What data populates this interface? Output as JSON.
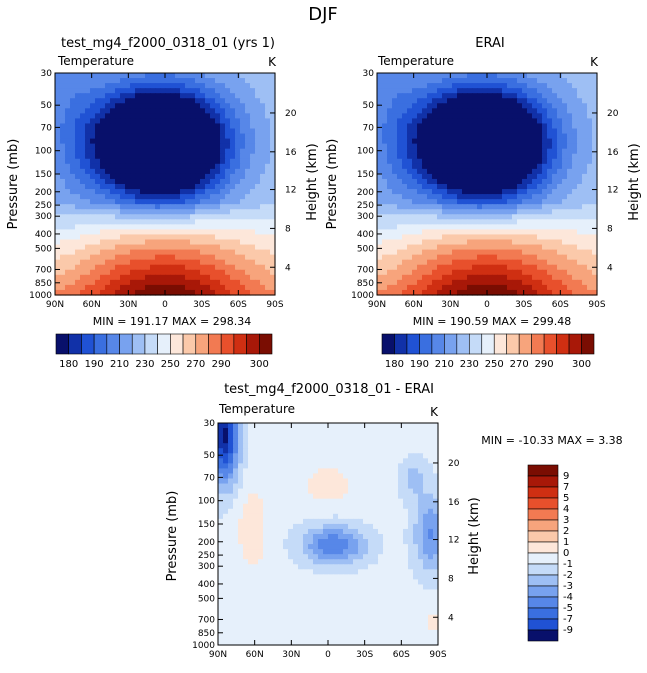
{
  "figure_title": "DJF",
  "colors": {
    "scale": [
      "#08106b",
      "#1131a8",
      "#2052d4",
      "#3a6fe0",
      "#5787e8",
      "#78a2ef",
      "#9ebff4",
      "#c5dbf8",
      "#e6f0fb",
      "#fde7da",
      "#fbc9aa",
      "#f7a47c",
      "#f27a52",
      "#e8502c",
      "#cf2f12",
      "#a81808",
      "#7a0d02"
    ],
    "diff_scale": [
      "#08106b",
      "#1131a8",
      "#2052d4",
      "#3a6fe0",
      "#5787e8",
      "#78a2ef",
      "#9ebff4",
      "#c5dbf8",
      "#e6f0fb",
      "#fde7da",
      "#fbc9aa",
      "#f7a47c",
      "#f27a52",
      "#e8502c",
      "#cf2f12",
      "#a81808",
      "#7a0d02"
    ]
  },
  "chart_data": [
    {
      "type": "heatmap",
      "title": "test_mg4_f2000_0318_01 (yrs 1)",
      "left_label": "Temperature",
      "right_label": "K",
      "xlabel": "",
      "ylabel": "Pressure (mb)",
      "ylabel_right": "Height (km)",
      "x_ticks": [
        "90N",
        "60N",
        "30N",
        "0",
        "30S",
        "60S",
        "90S"
      ],
      "y_ticks": [
        "30",
        "50",
        "70",
        "100",
        "150",
        "200",
        "250",
        "300",
        "400",
        "500",
        "700",
        "850",
        "1000"
      ],
      "right_ticks": [
        "20",
        "16",
        "12",
        "8",
        "4"
      ],
      "stats": "MIN = 191.17   MAX = 298.34",
      "colorbar_labels": [
        "180",
        "190",
        "210",
        "230",
        "250",
        "270",
        "290",
        "300"
      ]
    },
    {
      "type": "heatmap",
      "title": "ERAI",
      "left_label": "Temperature",
      "right_label": "K",
      "xlabel": "",
      "ylabel": "Pressure (mb)",
      "ylabel_right": "Height (km)",
      "x_ticks": [
        "90N",
        "60N",
        "30N",
        "0",
        "30S",
        "60S",
        "90S"
      ],
      "y_ticks": [
        "30",
        "50",
        "70",
        "100",
        "150",
        "200",
        "250",
        "300",
        "400",
        "500",
        "700",
        "850",
        "1000"
      ],
      "right_ticks": [
        "20",
        "16",
        "12",
        "8",
        "4"
      ],
      "stats": "MIN = 190.59   MAX = 299.48",
      "colorbar_labels": [
        "180",
        "190",
        "210",
        "230",
        "250",
        "270",
        "290",
        "300"
      ]
    },
    {
      "type": "heatmap",
      "title": "test_mg4_f2000_0318_01 - ERAI",
      "left_label": "Temperature",
      "right_label": "K",
      "xlabel": "",
      "ylabel": "Pressure (mb)",
      "ylabel_right": "Height (km)",
      "x_ticks": [
        "90N",
        "60N",
        "30N",
        "0",
        "30S",
        "60S",
        "90S"
      ],
      "y_ticks": [
        "30",
        "50",
        "70",
        "100",
        "150",
        "200",
        "250",
        "300",
        "400",
        "500",
        "700",
        "850",
        "1000"
      ],
      "right_ticks": [
        "20",
        "16",
        "12",
        "8",
        "4"
      ],
      "stats": "MIN = -10.33   MAX =    3.38",
      "colorbar_labels": [
        "9",
        "7",
        "5",
        "4",
        "3",
        "2",
        "1",
        "0",
        "-1",
        "-2",
        "-3",
        "-4",
        "-5",
        "-7",
        "-9"
      ]
    }
  ]
}
